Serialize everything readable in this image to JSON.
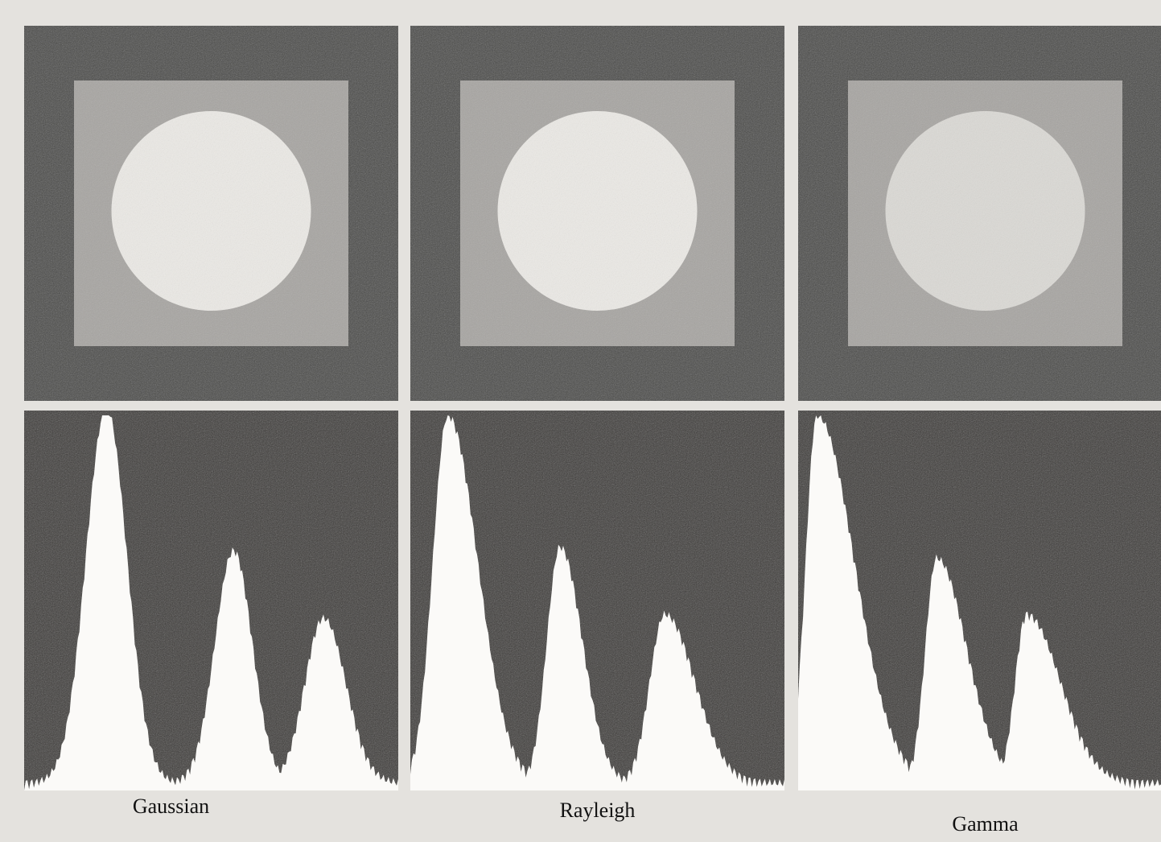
{
  "panels": [
    {
      "label": "Gaussian"
    },
    {
      "label": "Rayleigh"
    },
    {
      "label": "Gamma"
    }
  ]
}
